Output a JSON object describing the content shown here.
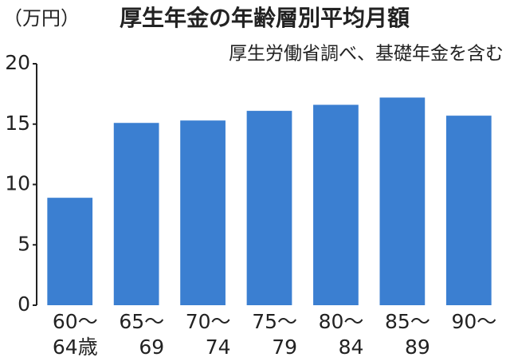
{
  "chart_data": {
    "type": "bar",
    "title": "厚生年金の年齢層別平均月額",
    "subtitle": "厚生労働省調べ、基礎年金を含む",
    "y_label": "（万円）",
    "categories": [
      "60〜\n64歳",
      "65〜\n69",
      "70〜\n74",
      "75〜\n79",
      "80〜\n84",
      "85〜\n89",
      "90〜"
    ],
    "values": [
      8.9,
      15.1,
      15.3,
      16.1,
      16.6,
      17.2,
      15.7
    ],
    "color": "#3b7fd1",
    "ylim": [
      0,
      20
    ],
    "yticks": [
      0,
      5,
      10,
      15,
      20
    ],
    "grid": false
  }
}
